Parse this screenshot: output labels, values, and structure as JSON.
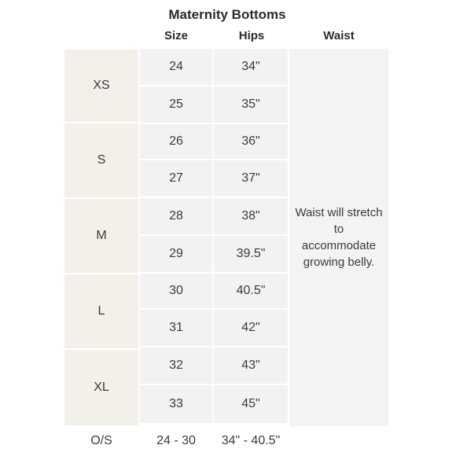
{
  "title": "Maternity Bottoms",
  "headers": {
    "size": "Size",
    "hips": "Hips",
    "waist": "Waist"
  },
  "groups": [
    {
      "label": "XS"
    },
    {
      "label": "S"
    },
    {
      "label": "M"
    },
    {
      "label": "L"
    },
    {
      "label": "XL"
    }
  ],
  "rows": [
    {
      "size": "24",
      "hips": "34\""
    },
    {
      "size": "25",
      "hips": "35\""
    },
    {
      "size": "26",
      "hips": "36\""
    },
    {
      "size": "27",
      "hips": "37\""
    },
    {
      "size": "28",
      "hips": "38\""
    },
    {
      "size": "29",
      "hips": "39.5\""
    },
    {
      "size": "30",
      "hips": "40.5\""
    },
    {
      "size": "31",
      "hips": "42\""
    },
    {
      "size": "32",
      "hips": "43\""
    },
    {
      "size": "33",
      "hips": "45\""
    }
  ],
  "waist_note_lines": [
    "Waist will stretch",
    "to",
    "accommodate",
    "growing belly."
  ],
  "os_row": {
    "label": "O/S",
    "size": "24 - 30",
    "hips": "34\" - 40.5\""
  },
  "colors": {
    "group_bg": "#f3f0e9",
    "cell_bg": "#f2f2f2",
    "waist_bg": "#f4f3f4"
  }
}
